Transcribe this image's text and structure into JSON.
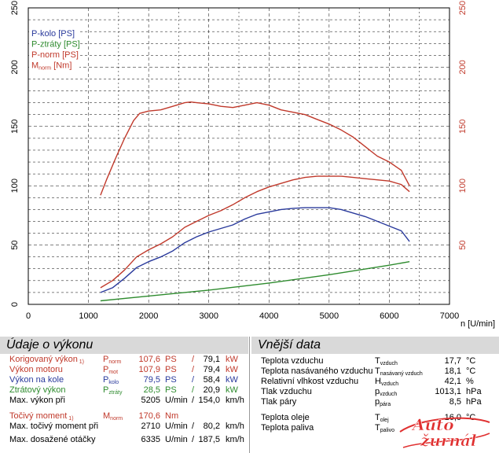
{
  "chart_data": {
    "type": "line",
    "xlabel": "n [U/min]",
    "x_ticks": [
      0,
      1000,
      2000,
      3000,
      4000,
      5000,
      6000,
      7000
    ],
    "xlim": [
      0,
      7000
    ],
    "y_ticks": [
      0,
      50,
      100,
      150,
      200,
      250
    ],
    "ylim": [
      0,
      250
    ],
    "y2_ticks": [
      50,
      100,
      150,
      200,
      250
    ],
    "ylim_right": [
      0,
      250
    ],
    "grid": true,
    "legend_position": "top-left",
    "legend": [
      {
        "name": "P-kolo [PS]",
        "color": "#2a3a9c"
      },
      {
        "name": "P-ztráty [PS]",
        "color": "#2e8b2e"
      },
      {
        "name": "P-norm [PS]",
        "color": "#c0392b"
      },
      {
        "name_main": "M",
        "name_sub": "norm",
        "name_unit": " [Nm]",
        "color": "#c0392b"
      }
    ],
    "series": [
      {
        "name": "P-kolo [PS]",
        "color": "#2a3a9c",
        "x": [
          1200,
          1400,
          1600,
          1800,
          2000,
          2200,
          2400,
          2600,
          2800,
          3000,
          3200,
          3400,
          3600,
          3800,
          4000,
          4200,
          4400,
          4600,
          4800,
          5000,
          5200,
          5400,
          5600,
          5800,
          6000,
          6200,
          6335
        ],
        "y": [
          10,
          14,
          22,
          31,
          36,
          40,
          45,
          52,
          57,
          61,
          64,
          67,
          72,
          76,
          78,
          80,
          81,
          81.5,
          81.5,
          81.5,
          80,
          77,
          74,
          70,
          66,
          62,
          53
        ]
      },
      {
        "name": "P-ztráty [PS]",
        "color": "#2e8b2e",
        "x": [
          1200,
          2000,
          3000,
          4000,
          5000,
          6000,
          6335
        ],
        "y": [
          3,
          7,
          12,
          18,
          25,
          33,
          36
        ]
      },
      {
        "name": "P-norm [PS]",
        "color": "#c0392b",
        "x": [
          1200,
          1400,
          1600,
          1800,
          2000,
          2200,
          2400,
          2600,
          2800,
          3000,
          3200,
          3400,
          3600,
          3800,
          4000,
          4200,
          4400,
          4600,
          4800,
          5000,
          5200,
          5400,
          5600,
          5800,
          6000,
          6200,
          6335
        ],
        "y": [
          14,
          20,
          29,
          40,
          46,
          51,
          57,
          65,
          70,
          75,
          79,
          84,
          90,
          95,
          99,
          102,
          105,
          107,
          108,
          108,
          108,
          107,
          106,
          105,
          104,
          101,
          95
        ]
      },
      {
        "name": "M norm [Nm]",
        "color": "#c0392b",
        "x": [
          1200,
          1300,
          1450,
          1600,
          1750,
          1850,
          2000,
          2200,
          2400,
          2600,
          2700,
          2800,
          3000,
          3200,
          3400,
          3600,
          3800,
          4000,
          4200,
          4400,
          4600,
          4800,
          5000,
          5200,
          5400,
          5600,
          5800,
          6000,
          6200,
          6335
        ],
        "y": [
          92,
          105,
          123,
          140,
          155,
          161,
          163,
          164,
          167,
          170,
          170.6,
          170,
          169,
          167,
          166,
          168,
          170,
          168,
          164,
          162,
          160,
          156,
          152,
          147,
          141,
          133,
          125,
          120,
          113,
          100
        ]
      }
    ]
  },
  "panels": {
    "left_title": "Údaje o výkonu",
    "right_title": "Vnější data"
  },
  "left_rows": [
    {
      "label": "Korigovaný výkon",
      "note": "1)",
      "sym": "P",
      "sub": "norm",
      "v1": "107,6",
      "u1": "PS",
      "sep": "/",
      "v2": "79,1",
      "u2": "kW",
      "color": "red"
    },
    {
      "label": "Výkon motoru",
      "note": "",
      "sym": "P",
      "sub": "mot",
      "v1": "107,9",
      "u1": "PS",
      "sep": "/",
      "v2": "79,4",
      "u2": "kW",
      "color": "red"
    },
    {
      "label": "Výkon na kole",
      "note": "",
      "sym": "P",
      "sub": "kolo",
      "v1": "79,5",
      "u1": "PS",
      "sep": "/",
      "v2": "58,4",
      "u2": "kW",
      "color": "blue"
    },
    {
      "label": "Ztrátový výkon",
      "note": "",
      "sym": "P",
      "sub": "ztráty",
      "v1": "28,5",
      "u1": "PS",
      "sep": "/",
      "v2": "20,9",
      "u2": "kW",
      "color": "green"
    },
    {
      "label": "Max. výkon při",
      "note": "",
      "sym": "",
      "sub": "",
      "v1": "5205",
      "u1": "U/min",
      "sep": "/",
      "v2": "154,0",
      "u2": "km/h",
      "color": ""
    },
    {
      "label": "Točivý moment",
      "note": "1)",
      "sym": "M",
      "sub": "norm",
      "v1": "170,6",
      "u1": "Nm",
      "sep": "",
      "v2": "",
      "u2": "",
      "color": "red"
    },
    {
      "label": "Max. točivý moment při",
      "note": "",
      "sym": "",
      "sub": "",
      "v1": "2710",
      "u1": "U/min",
      "sep": "/",
      "v2": "80,2",
      "u2": "km/h",
      "color": ""
    },
    {
      "label": "Max. dosažené otáčky",
      "note": "",
      "sym": "",
      "sub": "",
      "v1": "6335",
      "u1": "U/min",
      "sep": "/",
      "v2": "187,5",
      "u2": "km/h",
      "color": ""
    }
  ],
  "right_rows": [
    {
      "label": "Teplota vzduchu",
      "sym": "T",
      "sub": "vzduch",
      "val": "17,7",
      "unit": "°C"
    },
    {
      "label": "Teplota nasávaného vzduchu",
      "sym": "T",
      "sub": "nasávaný vzduch",
      "val": "18,1",
      "unit": "°C"
    },
    {
      "label": "Relativní vlhkost vzduchu",
      "sym": "H",
      "sub": "vzduch",
      "val": "42,1",
      "unit": "%"
    },
    {
      "label": "Tlak vzduchu",
      "sym": "p",
      "sub": "vzduch",
      "val": "1013,1",
      "unit": "hPa"
    },
    {
      "label": "Tlak páry",
      "sym": "p",
      "sub": "pára",
      "val": "8,5",
      "unit": "hPa"
    },
    {
      "label": "Teplota oleje",
      "sym": "T",
      "sub": "olej",
      "val": "16,0",
      "unit": "°C"
    },
    {
      "label": "Teplota paliva",
      "sym": "T",
      "sub": "palivo",
      "val": "",
      "unit": ""
    }
  ],
  "logo": {
    "line1": "Auto",
    "line2": "žurnál",
    "color": "#e03030"
  }
}
